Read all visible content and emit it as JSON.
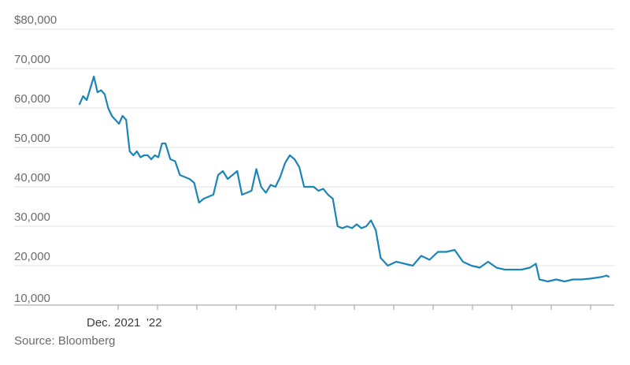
{
  "chart_data": {
    "type": "line",
    "title": "",
    "xlabel": "",
    "ylabel": "",
    "ylim": [
      10000,
      80000
    ],
    "y_ticks": [
      10000,
      20000,
      30000,
      40000,
      50000,
      60000,
      70000,
      80000
    ],
    "y_tick_labels": [
      "10,000",
      "20,000",
      "30,000",
      "40,000",
      "50,000",
      "60,000",
      "70,000",
      "$80,000"
    ],
    "x_tick_labels": [
      "Dec. 2021",
      "'22"
    ],
    "x_tick_count": 13,
    "grid": "horizontal",
    "line_color": "#1b85b8",
    "series": [
      {
        "x": [
          "2021-10-20",
          "2021-10-23",
          "2021-10-26",
          "2021-10-29",
          "2021-11-01",
          "2021-11-04",
          "2021-11-07",
          "2021-11-10",
          "2021-11-13",
          "2021-11-16",
          "2021-11-19",
          "2021-11-22",
          "2021-11-25",
          "2021-11-28",
          "2021-12-01",
          "2021-12-04",
          "2021-12-07",
          "2021-12-10",
          "2021-12-13",
          "2021-12-16",
          "2021-12-19",
          "2021-12-22",
          "2021-12-25",
          "2021-12-28",
          "2021-12-31",
          "2022-01-04",
          "2022-01-08",
          "2022-01-12",
          "2022-01-16",
          "2022-01-20",
          "2022-01-24",
          "2022-01-28",
          "2022-02-01",
          "2022-02-05",
          "2022-02-09",
          "2022-02-13",
          "2022-02-17",
          "2022-02-21",
          "2022-02-25",
          "2022-03-01",
          "2022-03-05",
          "2022-03-09",
          "2022-03-13",
          "2022-03-17",
          "2022-03-21",
          "2022-03-25",
          "2022-03-29",
          "2022-04-02",
          "2022-04-06",
          "2022-04-10",
          "2022-04-14",
          "2022-04-18",
          "2022-04-22",
          "2022-04-26",
          "2022-04-30",
          "2022-05-04",
          "2022-05-08",
          "2022-05-12",
          "2022-05-16",
          "2022-05-20",
          "2022-05-24",
          "2022-05-28",
          "2022-06-01",
          "2022-06-05",
          "2022-06-09",
          "2022-06-13",
          "2022-06-17",
          "2022-06-21",
          "2022-06-25",
          "2022-06-29",
          "2022-07-05",
          "2022-07-12",
          "2022-07-19",
          "2022-07-26",
          "2022-08-02",
          "2022-08-09",
          "2022-08-16",
          "2022-08-23",
          "2022-08-30",
          "2022-09-06",
          "2022-09-13",
          "2022-09-20",
          "2022-09-27",
          "2022-10-04",
          "2022-10-11",
          "2022-10-18",
          "2022-10-25",
          "2022-11-01",
          "2022-11-06",
          "2022-11-09",
          "2022-11-16",
          "2022-11-23",
          "2022-11-30",
          "2022-12-07",
          "2022-12-14",
          "2022-12-21",
          "2022-12-28",
          "2023-01-01",
          "2023-01-04",
          "2023-01-06"
        ],
        "values": [
          61000,
          63000,
          62000,
          65000,
          68000,
          64000,
          64500,
          63500,
          60000,
          58000,
          57000,
          56000,
          58000,
          57000,
          49000,
          48000,
          49000,
          47500,
          48000,
          48000,
          47000,
          48000,
          47500,
          51000,
          51000,
          47000,
          46500,
          43000,
          42500,
          42000,
          41000,
          36000,
          37000,
          37500,
          38000,
          43000,
          44000,
          42000,
          43000,
          44000,
          38000,
          38500,
          39000,
          44500,
          40000,
          38500,
          40500,
          40000,
          42500,
          46000,
          48000,
          47000,
          45000,
          40000,
          40000,
          40000,
          39000,
          39500,
          38000,
          37000,
          30000,
          29500,
          30000,
          29500,
          30500,
          29500,
          30000,
          31500,
          29000,
          22000,
          20000,
          21000,
          20500,
          20000,
          22500,
          21500,
          23500,
          23500,
          24000,
          21000,
          20000,
          19500,
          21000,
          19500,
          19000,
          19000,
          19000,
          19500,
          20500,
          16500,
          16000,
          16500,
          16000,
          16500,
          16500,
          16700,
          17000,
          17200,
          17500,
          17200
        ]
      }
    ],
    "source": "Source: Bloomberg"
  }
}
